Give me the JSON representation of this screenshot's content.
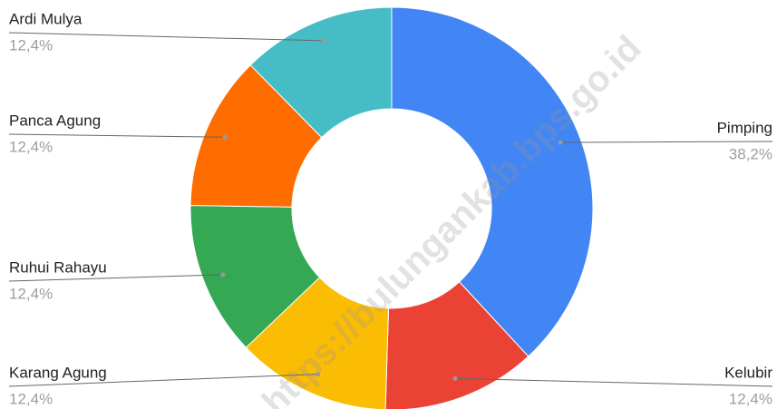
{
  "chart_data": {
    "type": "donut",
    "categories": [
      "Pimping",
      "Kelubir",
      "Karang Agung",
      "Ruhui Rahayu",
      "Panca Agung",
      "Ardi Mulya"
    ],
    "values": [
      38.2,
      12.4,
      12.4,
      12.4,
      12.4,
      12.4
    ],
    "value_labels": [
      "38,2%",
      "12,4%",
      "12,4%",
      "12,4%",
      "12,4%",
      "12,4%"
    ],
    "colors": [
      "#4285f4",
      "#ea4335",
      "#fbbc04",
      "#34a853",
      "#ff6d01",
      "#46bdc6"
    ],
    "watermark": "https://bulungankab.bps.go.id"
  }
}
